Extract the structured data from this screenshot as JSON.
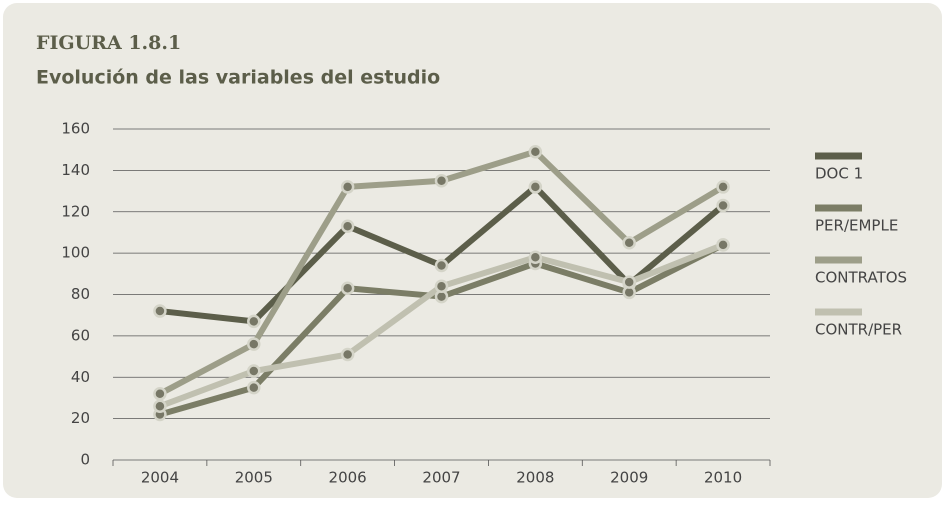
{
  "chart_data": {
    "type": "line",
    "title": "FIGURA 1.8.1",
    "subtitle": "Evolución de las variables del estudio",
    "categories": [
      "2004",
      "2005",
      "2006",
      "2007",
      "2008",
      "2009",
      "2010"
    ],
    "series": [
      {
        "name": "DOC 1",
        "color": "#5c5e4a",
        "values": [
          72,
          67,
          113,
          94,
          132,
          85,
          123
        ]
      },
      {
        "name": "PER/EMPLE",
        "color": "#7b7d66",
        "values": [
          22,
          35,
          83,
          79,
          95,
          81,
          104
        ]
      },
      {
        "name": "CONTRATOS",
        "color": "#9d9e89",
        "values": [
          32,
          56,
          132,
          135,
          149,
          105,
          132
        ]
      },
      {
        "name": "CONTR/PER",
        "color": "#c0c0b0",
        "values": [
          26,
          43,
          51,
          84,
          98,
          86,
          104
        ]
      }
    ],
    "ylim": [
      0,
      160
    ],
    "yticks": [
      0,
      20,
      40,
      60,
      80,
      100,
      120,
      140,
      160
    ],
    "grid": true,
    "legend": "right"
  }
}
